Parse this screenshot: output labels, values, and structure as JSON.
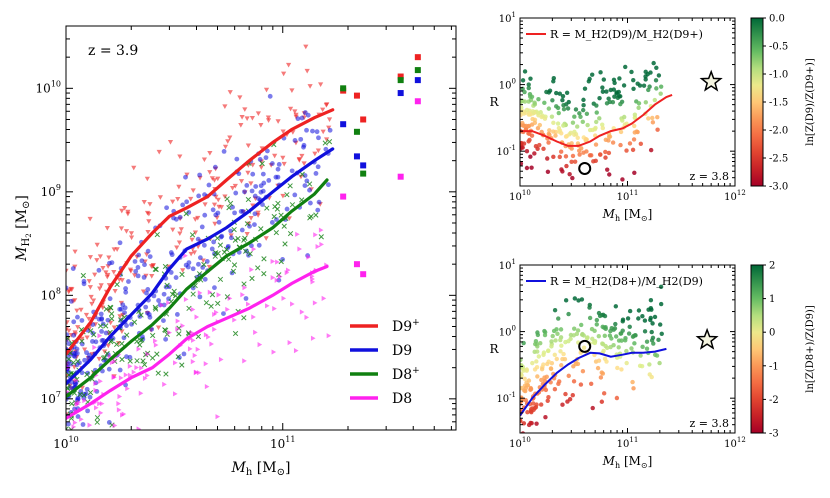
{
  "chart_data": [
    {
      "type": "scatter",
      "panel": "left",
      "annotation": "z = 3.9",
      "xlabel": "M_h [M_sun]",
      "ylabel": "M_H2 [M_sun]",
      "xscale": "log",
      "yscale": "log",
      "xlim": [
        10000000000.0,
        630000000000.0
      ],
      "ylim": [
        5000000.0,
        40000000000.0
      ],
      "xticks": [
        {
          "base": "10",
          "exp": "10",
          "v": 10000000000.0
        },
        {
          "base": "10",
          "exp": "11",
          "v": 100000000000.0
        }
      ],
      "yticks": [
        {
          "base": "10",
          "exp": "7",
          "v": 10000000.0
        },
        {
          "base": "10",
          "exp": "8",
          "v": 100000000.0
        },
        {
          "base": "10",
          "exp": "9",
          "v": 1000000000.0
        },
        {
          "base": "10",
          "exp": "10",
          "v": 10000000000.0
        }
      ],
      "legend_position": "lower-right",
      "series": [
        {
          "name": "D9",
          "sup": "+",
          "color": "#ee2222",
          "curve": [
            [
              10000000000.0,
              27000000.0
            ],
            [
              13000000000.0,
              55000000.0
            ],
            [
              16000000000.0,
              120000000.0
            ],
            [
              20000000000.0,
              240000000.0
            ],
            [
              25000000000.0,
              400000000.0
            ],
            [
              30000000000.0,
              580000000.0
            ],
            [
              36000000000.0,
              700000000.0
            ],
            [
              45000000000.0,
              900000000.0
            ],
            [
              55000000000.0,
              1300000000.0
            ],
            [
              70000000000.0,
              2000000000.0
            ],
            [
              90000000000.0,
              3000000000.0
            ],
            [
              110000000000.0,
              4000000000.0
            ],
            [
              140000000000.0,
              5200000000.0
            ],
            [
              170000000000.0,
              6200000000.0
            ]
          ],
          "squares": [
            [
              190000000000.0,
              9500000000.0
            ],
            [
              220000000000.0,
              8500000000.0
            ],
            [
              235000000000.0,
              5000000000.0
            ],
            [
              350000000000.0,
              13000000000.0
            ],
            [
              420000000000.0,
              20000000000.0
            ]
          ]
        },
        {
          "name": "D9",
          "sup": "",
          "color": "#1010dd",
          "curve": [
            [
              10000000000.0,
              14000000.0
            ],
            [
              13000000000.0,
              24000000.0
            ],
            [
              16000000000.0,
              40000000.0
            ],
            [
              20000000000.0,
              65000000.0
            ],
            [
              25000000000.0,
              105000000.0
            ],
            [
              30000000000.0,
              180000000.0
            ],
            [
              36000000000.0,
              280000000.0
            ],
            [
              45000000000.0,
              350000000.0
            ],
            [
              55000000000.0,
              450000000.0
            ],
            [
              70000000000.0,
              650000000.0
            ],
            [
              90000000000.0,
              1000000000.0
            ],
            [
              110000000000.0,
              1400000000.0
            ],
            [
              140000000000.0,
              2000000000.0
            ],
            [
              170000000000.0,
              2600000000.0
            ]
          ],
          "squares": [
            [
              190000000000.0,
              4500000000.0
            ],
            [
              220000000000.0,
              2200000000.0
            ],
            [
              235000000000.0,
              1800000000.0
            ],
            [
              350000000000.0,
              9000000000.0
            ],
            [
              420000000000.0,
              12000000000.0
            ]
          ]
        },
        {
          "name": "D8",
          "sup": "+",
          "color": "#108010",
          "curve": [
            [
              10000000000.0,
              10500000.0
            ],
            [
              13000000000.0,
              16000000.0
            ],
            [
              16000000000.0,
              24000000.0
            ],
            [
              20000000000.0,
              36000000.0
            ],
            [
              25000000000.0,
              52000000.0
            ],
            [
              30000000000.0,
              75000000.0
            ],
            [
              36000000000.0,
              115000000.0
            ],
            [
              45000000000.0,
              170000000.0
            ],
            [
              55000000000.0,
              240000000.0
            ],
            [
              70000000000.0,
              320000000.0
            ],
            [
              90000000000.0,
              450000000.0
            ],
            [
              110000000000.0,
              650000000.0
            ],
            [
              140000000000.0,
              950000000.0
            ],
            [
              160000000000.0,
              1300000000.0
            ]
          ],
          "squares": [
            [
              190000000000.0,
              10000000000.0
            ],
            [
              220000000000.0,
              3800000000.0
            ],
            [
              235000000000.0,
              1500000000.0
            ],
            [
              350000000000.0,
              12000000000.0
            ],
            [
              420000000000.0,
              15000000000.0
            ]
          ]
        },
        {
          "name": "D8",
          "sup": "",
          "color": "#ff22ee",
          "curve": [
            [
              10000000000.0,
              6500000.0
            ],
            [
              13000000000.0,
              9000000.0
            ],
            [
              16000000000.0,
              12000000.0
            ],
            [
              20000000000.0,
              16000000.0
            ],
            [
              25000000000.0,
              20000000.0
            ],
            [
              30000000000.0,
              27000000.0
            ],
            [
              36000000000.0,
              38000000.0
            ],
            [
              45000000000.0,
              50000000.0
            ],
            [
              55000000000.0,
              60000000.0
            ],
            [
              70000000000.0,
              75000000.0
            ],
            [
              90000000000.0,
              100000000.0
            ],
            [
              110000000000.0,
              130000000.0
            ],
            [
              140000000000.0,
              170000000.0
            ],
            [
              160000000000.0,
              190000000.0
            ]
          ],
          "squares": [
            [
              190000000000.0,
              900000000.0
            ],
            [
              220000000000.0,
              200000000.0
            ],
            [
              235000000000.0,
              160000000.0
            ],
            [
              350000000000.0,
              1400000000.0
            ],
            [
              420000000000.0,
              7500000000.0
            ]
          ]
        }
      ]
    },
    {
      "type": "scatter",
      "panel": "top-right",
      "legend_text": "R = M_H2(D9)/M_H2(D9+)",
      "annotation": "z = 3.8",
      "xlabel": "M_h [M_sun]",
      "ylabel": "R",
      "xscale": "log",
      "yscale": "log",
      "xlim": [
        10000000000.0,
        1000000000000.0
      ],
      "ylim": [
        0.03,
        10
      ],
      "xticks": [
        {
          "base": "10",
          "exp": "10",
          "v": 10000000000.0
        },
        {
          "base": "10",
          "exp": "11",
          "v": 100000000000.0
        },
        {
          "base": "10",
          "exp": "12",
          "v": 1000000000000.0
        }
      ],
      "yticks": [
        {
          "base": "10",
          "exp": "-1",
          "v": 0.1
        },
        {
          "base": "10",
          "exp": "0",
          "v": 1
        },
        {
          "base": "10",
          "exp": "1",
          "v": 10
        }
      ],
      "curve_color": "#ee2222",
      "curve": [
        [
          10000000000.0,
          0.2
        ],
        [
          13000000000.0,
          0.2
        ],
        [
          17000000000.0,
          0.17
        ],
        [
          22000000000.0,
          0.14
        ],
        [
          28000000000.0,
          0.12
        ],
        [
          35000000000.0,
          0.12
        ],
        [
          45000000000.0,
          0.14
        ],
        [
          55000000000.0,
          0.17
        ],
        [
          70000000000.0,
          0.2
        ],
        [
          90000000000.0,
          0.22
        ],
        [
          110000000000.0,
          0.26
        ],
        [
          140000000000.0,
          0.35
        ],
        [
          180000000000.0,
          0.5
        ],
        [
          230000000000.0,
          0.65
        ],
        [
          260000000000.0,
          0.7
        ]
      ],
      "star": [
        600000000000.0,
        1.1
      ],
      "circle": [
        40000000000.0,
        0.055
      ],
      "colorbar": {
        "label": "ln[Z(D9)/Z(D9+)]",
        "range": [
          -3.0,
          0.0
        ],
        "ticks": [
          "0.0",
          "-0.5",
          "-1.0",
          "-1.5",
          "-2.0",
          "-2.5",
          "-3.0"
        ]
      }
    },
    {
      "type": "scatter",
      "panel": "bottom-right",
      "legend_text": "R = M_H2(D8+)/M_H2(D9)",
      "annotation": "z = 3.8",
      "xlabel": "M_h [M_sun]",
      "ylabel": "R",
      "xscale": "log",
      "yscale": "log",
      "xlim": [
        10000000000.0,
        1000000000000.0
      ],
      "ylim": [
        0.03,
        10
      ],
      "xticks": [
        {
          "base": "10",
          "exp": "10",
          "v": 10000000000.0
        },
        {
          "base": "10",
          "exp": "11",
          "v": 100000000000.0
        },
        {
          "base": "10",
          "exp": "12",
          "v": 1000000000000.0
        }
      ],
      "yticks": [
        {
          "base": "10",
          "exp": "-1",
          "v": 0.1
        },
        {
          "base": "10",
          "exp": "0",
          "v": 1
        },
        {
          "base": "10",
          "exp": "1",
          "v": 10
        }
      ],
      "curve_color": "#1010dd",
      "curve": [
        [
          10000000000.0,
          0.055
        ],
        [
          13000000000.0,
          0.1
        ],
        [
          17000000000.0,
          0.16
        ],
        [
          22000000000.0,
          0.24
        ],
        [
          28000000000.0,
          0.32
        ],
        [
          35000000000.0,
          0.4
        ],
        [
          45000000000.0,
          0.48
        ],
        [
          55000000000.0,
          0.47
        ],
        [
          70000000000.0,
          0.42
        ],
        [
          90000000000.0,
          0.45
        ],
        [
          110000000000.0,
          0.48
        ],
        [
          140000000000.0,
          0.48
        ],
        [
          180000000000.0,
          0.5
        ],
        [
          230000000000.0,
          0.55
        ]
      ],
      "star": [
        550000000000.0,
        0.75
      ],
      "circle": [
        40000000000.0,
        0.6
      ],
      "colorbar": {
        "label": "ln[Z(D8+)/Z(D9)]",
        "range": [
          -3,
          2
        ],
        "ticks": [
          "2",
          "1",
          "0",
          "-1",
          "-2",
          "-3"
        ]
      }
    }
  ]
}
